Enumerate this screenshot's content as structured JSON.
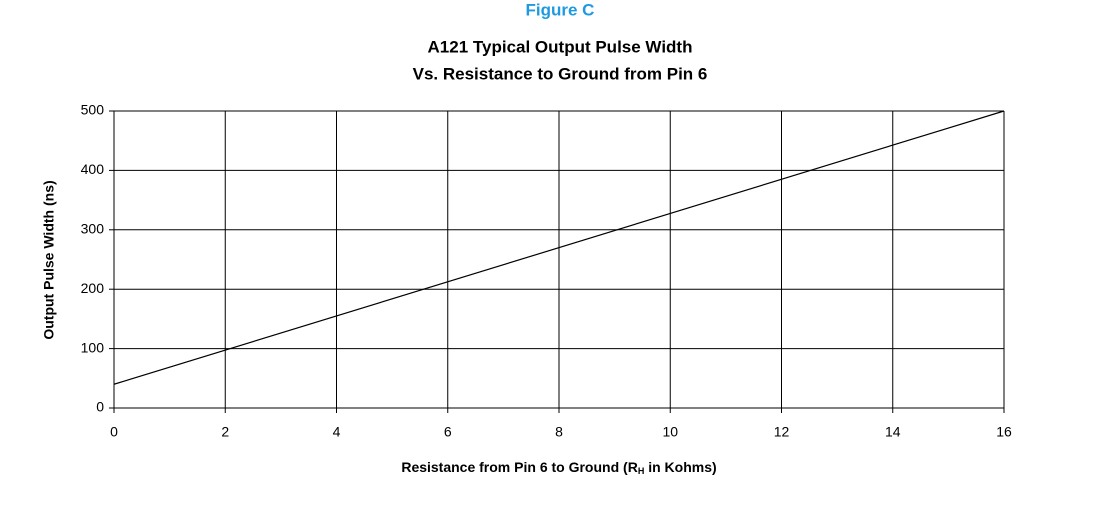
{
  "chart_data": {
    "type": "line",
    "figure_label": "Figure C",
    "title": "A121 Typical Output Pulse Width",
    "subtitle": "Vs. Resistance to Ground from Pin 6",
    "ylabel": "Output Pulse Width (ns)",
    "xlabel": {
      "start": "Resistance from Pin 6 to Ground (R",
      "sub": "H",
      "end": " in Kohms)"
    },
    "x": [
      0,
      16
    ],
    "series": [
      {
        "values": [
          40,
          500
        ],
        "color": "#000000"
      }
    ],
    "xlim": [
      0,
      16
    ],
    "xticks": [
      0,
      2,
      4,
      6,
      8,
      10,
      12,
      14,
      16
    ],
    "ylim": [
      0,
      500
    ],
    "yticks": [
      0,
      100,
      200,
      300,
      400,
      500
    ],
    "grid": true
  }
}
